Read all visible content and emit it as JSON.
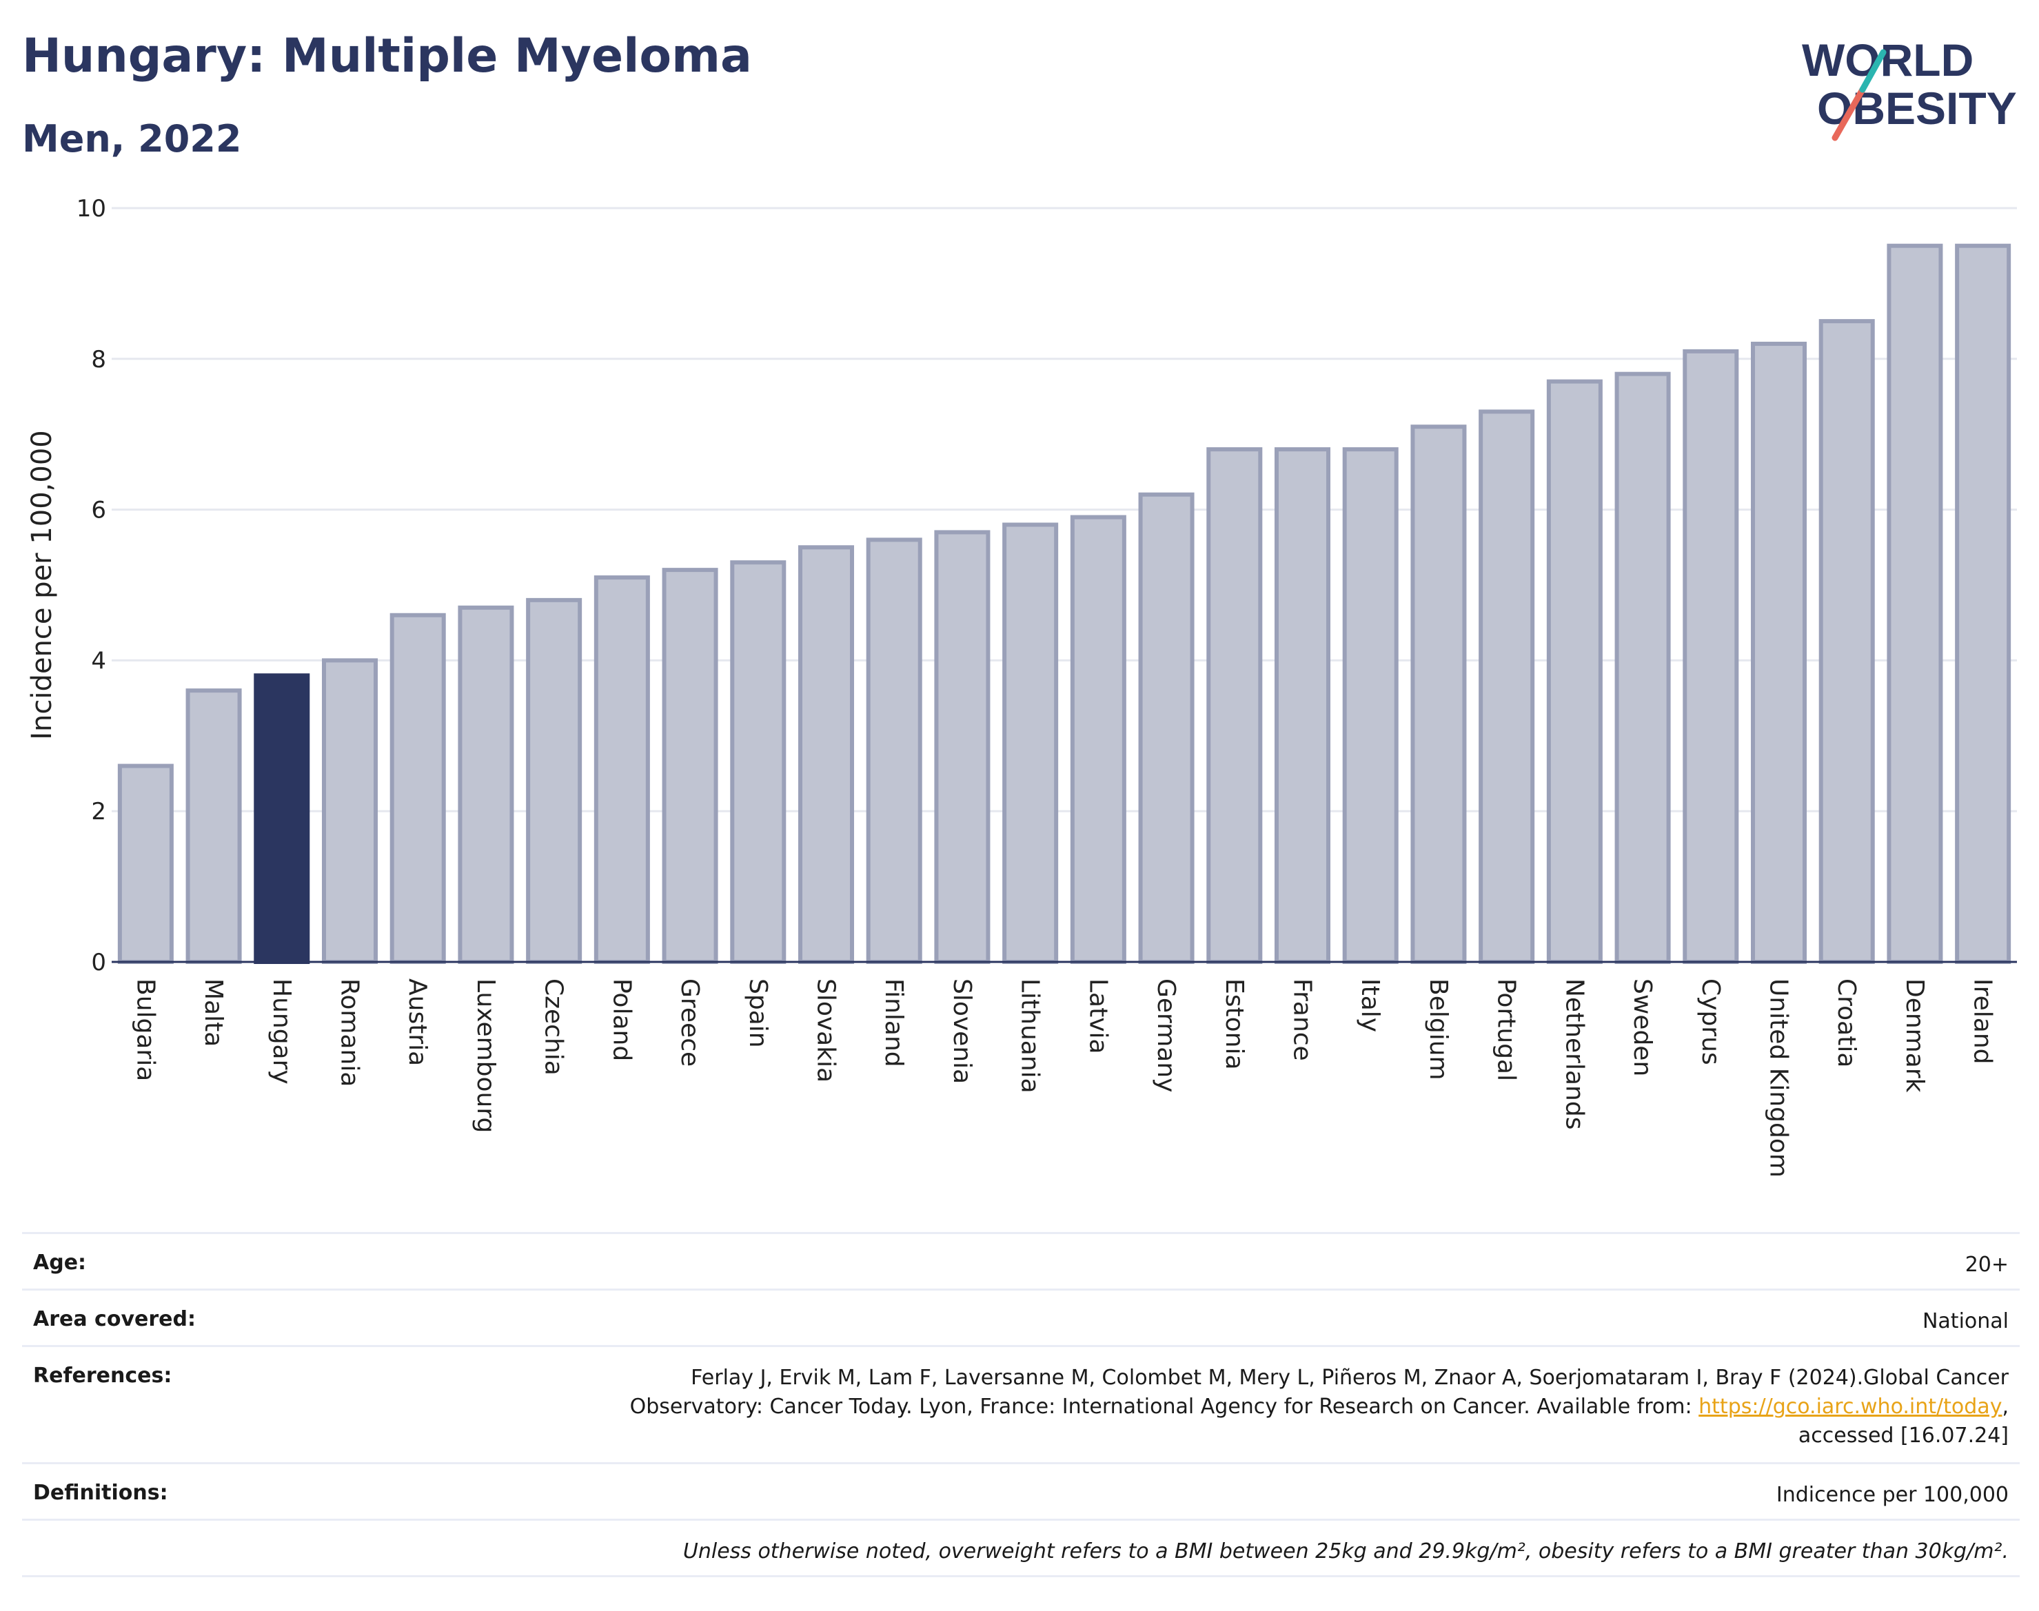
{
  "header": {
    "title": "Hungary: Multiple Myeloma",
    "subtitle": "Men, 2022",
    "logo_line1": "WORLD",
    "logo_line2": "OBESITY"
  },
  "colors": {
    "highlight": "#2b3660",
    "bar": "#c0c4d2",
    "bar_border": "#9aa0b8",
    "title": "#2b3660",
    "logo_slash_teal": "#2bb5b0",
    "logo_slash_red": "#e8685a"
  },
  "chart_data": {
    "type": "bar",
    "ylabel": "Incidence per 100,000",
    "ylim": [
      0,
      10
    ],
    "yticks": [
      0,
      2,
      4,
      6,
      8,
      10
    ],
    "grid": true,
    "highlight": "Hungary",
    "categories": [
      "Bulgaria",
      "Malta",
      "Hungary",
      "Romania",
      "Austria",
      "Luxembourg",
      "Czechia",
      "Poland",
      "Greece",
      "Spain",
      "Slovakia",
      "Finland",
      "Slovenia",
      "Lithuania",
      "Latvia",
      "Germany",
      "Estonia",
      "France",
      "Italy",
      "Belgium",
      "Portugal",
      "Netherlands",
      "Sweden",
      "Cyprus",
      "United Kingdom",
      "Croatia",
      "Denmark",
      "Ireland"
    ],
    "values": [
      2.6,
      3.6,
      3.8,
      4.0,
      4.6,
      4.7,
      4.8,
      5.1,
      5.2,
      5.3,
      5.5,
      5.6,
      5.7,
      5.8,
      5.9,
      6.2,
      6.8,
      6.8,
      6.8,
      7.1,
      7.3,
      7.7,
      7.8,
      8.1,
      8.2,
      8.5,
      9.5,
      9.5
    ]
  },
  "info": {
    "age_label": "Age:",
    "age_value": "20+",
    "area_label": "Area covered:",
    "area_value": "National",
    "references_label": "References:",
    "references_line1": "Ferlay J, Ervik M, Lam F, Laversanne M, Colombet M, Mery L, Piñeros M, Znaor A, Soerjomataram I, Bray F (2024).Global Cancer",
    "references_line2": "Observatory: Cancer Today. Lyon, France: International Agency for Research on Cancer. Available from: ",
    "references_link": "https://gco.iarc.who.int/today",
    "references_line2_end": ",",
    "references_line3": "accessed [16.07.24]",
    "definitions_label": "Definitions:",
    "definitions_value": "Indicence per 100,000",
    "note": "Unless otherwise noted, overweight refers to a BMI between 25kg and 29.9kg/m², obesity refers to a BMI greater than 30kg/m²."
  }
}
